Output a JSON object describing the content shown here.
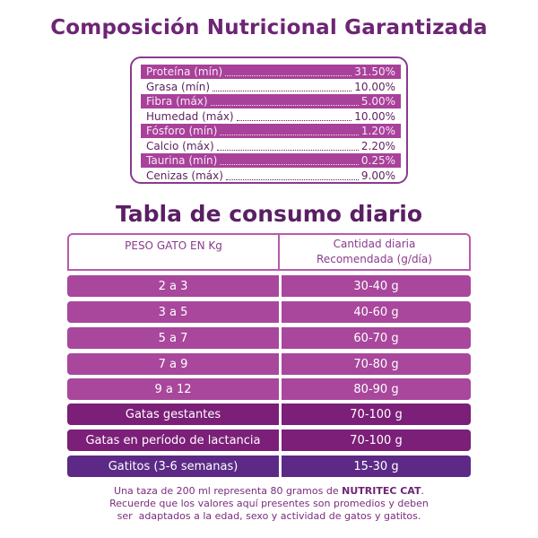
{
  "title": "Composición Nutricional Garantizada",
  "nutrition": [
    {
      "label": "Proteína (mín)",
      "value": "31.50%",
      "shaded": true
    },
    {
      "label": "Grasa (mín)",
      "value": "10.00%",
      "shaded": false
    },
    {
      "label": "Fibra (máx)",
      "value": "5.00%",
      "shaded": true
    },
    {
      "label": "Humedad (máx)",
      "value": "10.00%",
      "shaded": false
    },
    {
      "label": "Fósforo (mín)",
      "value": "1.20%",
      "shaded": true
    },
    {
      "label": "Calcio (máx)",
      "value": "2.20%",
      "shaded": false
    },
    {
      "label": "Taurina (mín)",
      "value": "0.25%",
      "shaded": true
    },
    {
      "label": "Cenizas (máx)",
      "value": "9.00%",
      "shaded": false
    }
  ],
  "table_title": "Tabla de consumo diario",
  "table": {
    "header_left": "PESO GATO EN Kg",
    "header_right_line1": "Cantidad diaria",
    "header_right_line2": "Recomendada (g/día)",
    "rows": [
      {
        "weight": "2 a 3",
        "amount": "30-40 g",
        "color": "#a8479c"
      },
      {
        "weight": "3 a 5",
        "amount": "40-60 g",
        "color": "#a8479c"
      },
      {
        "weight": "5 a 7",
        "amount": "60-70 g",
        "color": "#a8479c"
      },
      {
        "weight": "7 a 9",
        "amount": "70-80 g",
        "color": "#a8479c"
      },
      {
        "weight": "9 a 12",
        "amount": "80-90 g",
        "color": "#a8479c"
      },
      {
        "weight": "Gatas gestantes",
        "amount": "70-100 g",
        "color": "#7b1f78"
      },
      {
        "weight": "Gatas en período de lactancia",
        "amount": "70-100 g",
        "color": "#7b1f78"
      },
      {
        "weight": "Gatitos (3-6 semanas)",
        "amount": "15-30 g",
        "color": "#5c2a86"
      }
    ]
  },
  "footer": {
    "line1_prefix": "Una taza de 200 ml representa 80 gramos de ",
    "brand": "NUTRITEC CAT",
    "line1_suffix": ".",
    "line2": "Recuerde que los valores aquí presentes son promedios y deben",
    "line3": "ser  adaptados a la edad, sexo y actividad de gatos y gatitos."
  }
}
